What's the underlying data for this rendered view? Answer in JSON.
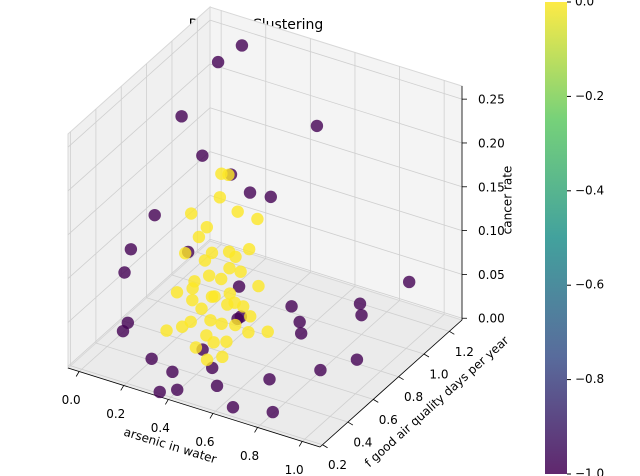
{
  "chart_data": {
    "type": "scatter3d",
    "title": "DBSCAN Clustering",
    "xlabel": "arsenic in water",
    "ylabel": "f good air quality days per year",
    "zlabel": "cancer rate",
    "xlim": [
      -0.05,
      1.08
    ],
    "ylim": [
      0.18,
      1.3
    ],
    "zlim": [
      -0.002,
      0.265
    ],
    "xticks": [
      {
        "value": 0,
        "label": "0.0"
      },
      0.2,
      0.4,
      0.6,
      0.8,
      {
        "value": 1,
        "label": "1.0"
      }
    ],
    "yticks": [
      0.2,
      0.4,
      0.6,
      0.8,
      {
        "value": 1,
        "label": "1.0"
      },
      1.2
    ],
    "zticks": [
      {
        "value": 0,
        "label": "0.00"
      },
      {
        "value": 0.05,
        "label": "0.05"
      },
      {
        "value": 0.1,
        "label": "0.10"
      },
      {
        "value": 0.15,
        "label": "0.15"
      },
      {
        "value": 0.2,
        "label": "0.20"
      },
      {
        "value": 0.25,
        "label": "0.25"
      }
    ],
    "colormap": [
      "#440154",
      "#3b528b",
      "#21918c",
      "#5ec962",
      "#fde725"
    ],
    "clim": [
      -1,
      0
    ],
    "cticks": [
      {
        "value": 0,
        "label": "0.0"
      },
      {
        "value": -0.2,
        "label": "−0.2"
      },
      {
        "value": -0.4,
        "label": "−0.4"
      },
      {
        "value": -0.6,
        "label": "−0.6"
      },
      {
        "value": -0.8,
        "label": "−0.8"
      },
      {
        "value": -1,
        "label": "−1.0"
      }
    ],
    "series": [
      {
        "cluster": -1,
        "x": [
          0.05,
          0.1,
          0.15,
          0.6,
          0.05,
          0.2,
          0.35,
          0.1,
          0.4,
          0.5,
          0.7,
          0.8,
          0.9,
          0.85,
          0.95,
          0.6,
          0.75,
          0.5,
          0.45,
          0.3,
          0.2,
          0.1,
          0.05,
          0.65,
          0.55,
          0.4,
          0.35,
          0.7,
          0.8,
          0.25,
          0.15,
          0.9,
          0.6,
          0.45,
          0.3
        ],
        "y": [
          0.9,
          1.1,
          1.2,
          1.0,
          0.5,
          0.4,
          0.3,
          0.6,
          0.25,
          0.35,
          0.45,
          0.3,
          0.5,
          0.9,
          0.7,
          0.8,
          0.6,
          0.55,
          0.9,
          1.0,
          0.8,
          0.35,
          0.45,
          0.25,
          0.3,
          0.45,
          0.2,
          0.7,
          1.0,
          0.6,
          0.3,
          1.2,
          0.4,
          0.65,
          0.85
        ],
        "z": [
          0.2,
          0.24,
          0.25,
          0.22,
          0.1,
          0,
          0.01,
          0.13,
          0,
          0.02,
          0.01,
          0,
          0.03,
          0.05,
          0.02,
          0.04,
          0.06,
          0.05,
          0.14,
          0.12,
          0.18,
          0.03,
          0.08,
          0,
          0.01,
          0.02,
          0,
          0.03,
          0.02,
          0.1,
          0.05,
          0.04,
          0.08,
          0.07,
          0.16
        ]
      },
      {
        "cluster": 0,
        "x": [
          0.2,
          0.25,
          0.3,
          0.35,
          0.4,
          0.45,
          0.5,
          0.22,
          0.28,
          0.33,
          0.38,
          0.42,
          0.48,
          0.18,
          0.26,
          0.31,
          0.36,
          0.41,
          0.46,
          0.52,
          0.24,
          0.29,
          0.34,
          0.39,
          0.44,
          0.21,
          0.27,
          0.32,
          0.37,
          0.43,
          0.3,
          0.35,
          0.4,
          0.25,
          0.2,
          0.15,
          0.55,
          0.33,
          0.38,
          0.28,
          0.45,
          0.36,
          0.31,
          0.23,
          0.41
        ],
        "y": [
          0.6,
          0.65,
          0.7,
          0.75,
          0.6,
          0.55,
          0.65,
          0.8,
          0.5,
          0.85,
          0.7,
          0.45,
          0.75,
          0.7,
          0.9,
          0.6,
          0.55,
          0.8,
          0.5,
          0.6,
          0.75,
          0.55,
          0.65,
          0.9,
          0.7,
          0.5,
          0.6,
          0.8,
          0.45,
          0.65,
          0.7,
          0.6,
          0.75,
          0.85,
          0.95,
          0.8,
          0.7,
          0.72,
          0.68,
          0.58,
          0.62,
          0.78,
          0.66,
          0.72,
          0.52
        ],
        "z": [
          0.05,
          0.06,
          0.04,
          0.07,
          0.03,
          0.02,
          0.04,
          0.1,
          0.03,
          0.12,
          0.05,
          0.01,
          0.06,
          0.08,
          0.15,
          0.04,
          0.02,
          0.09,
          0.01,
          0.03,
          0.07,
          0.03,
          0.05,
          0.11,
          0.04,
          0.02,
          0.06,
          0.08,
          0.02,
          0.05,
          0.09,
          0.03,
          0.07,
          0.13,
          0.14,
          0.11,
          0.02,
          0.06,
          0.04,
          0.05,
          0.03,
          0.08,
          0.07,
          0.1,
          0.02
        ]
      }
    ]
  }
}
